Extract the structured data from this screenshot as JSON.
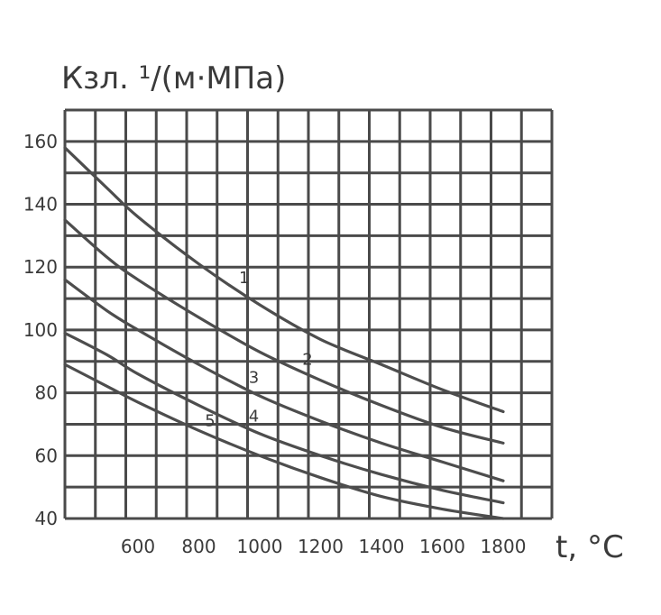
{
  "chart_data": {
    "type": "line",
    "ylabel": "Кзл. ¹/(м·МПа)",
    "xlabel": "t, °C",
    "xlim": [
      360,
      1960
    ],
    "ylim": [
      40,
      170
    ],
    "x_ticks": [
      {
        "value": 600,
        "label": "600"
      },
      {
        "value": 800,
        "label": "800"
      },
      {
        "value": 1000,
        "label": "1000"
      },
      {
        "value": 1200,
        "label": "1200"
      },
      {
        "value": 1400,
        "label": "1400"
      },
      {
        "value": 1600,
        "label": "1600"
      },
      {
        "value": 1800,
        "label": "1800"
      }
    ],
    "y_ticks": [
      {
        "value": 40,
        "label": "40"
      },
      {
        "value": 60,
        "label": "60"
      },
      {
        "value": 80,
        "label": "80"
      },
      {
        "value": 100,
        "label": "100"
      },
      {
        "value": 120,
        "label": "120"
      },
      {
        "value": 140,
        "label": "140"
      },
      {
        "value": 160,
        "label": "160"
      }
    ],
    "grid": true,
    "series": [
      {
        "name": "1",
        "x": [
          360,
          500,
          600,
          800,
          1000,
          1200,
          1400,
          1600,
          1800
        ],
        "y": [
          158,
          145,
          136,
          121,
          108,
          97,
          89,
          81,
          74
        ]
      },
      {
        "name": "2",
        "x": [
          360,
          500,
          600,
          800,
          1000,
          1200,
          1400,
          1600,
          1800
        ],
        "y": [
          135,
          123,
          116,
          104,
          93,
          84,
          76,
          69,
          64
        ]
      },
      {
        "name": "3",
        "x": [
          360,
          500,
          600,
          800,
          1000,
          1200,
          1400,
          1600,
          1800
        ],
        "y": [
          116,
          106,
          100,
          89,
          79,
          71,
          64,
          58,
          52
        ]
      },
      {
        "name": "4",
        "x": [
          360,
          500,
          600,
          800,
          1000,
          1200,
          1400,
          1600,
          1800
        ],
        "y": [
          99,
          92,
          86,
          76,
          67,
          60,
          54,
          49,
          45
        ]
      },
      {
        "name": "5",
        "x": [
          360,
          500,
          600,
          800,
          1000,
          1200,
          1400,
          1600,
          1800
        ],
        "y": [
          89,
          82,
          77,
          68,
          60,
          53,
          47,
          43,
          40
        ]
      }
    ]
  }
}
